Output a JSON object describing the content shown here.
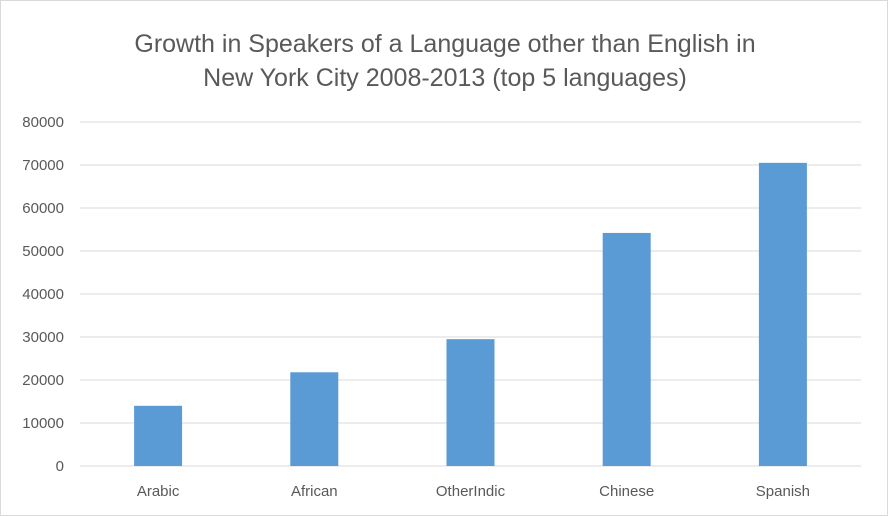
{
  "chart_data": {
    "type": "bar",
    "title_lines": [
      "Growth in Speakers of a Language other than English in",
      "New York City 2008-2013 (top 5 languages)"
    ],
    "xlabel": "",
    "ylabel": "",
    "categories": [
      "Arabic",
      "African",
      "OtherIndic",
      "Chinese",
      "Spanish"
    ],
    "values": [
      14000,
      21800,
      29500,
      54200,
      70500
    ],
    "ylim": [
      0,
      80000
    ],
    "yticks": [
      "0",
      "10000",
      "20000",
      "30000",
      "40000",
      "50000",
      "60000",
      "70000",
      "80000"
    ],
    "grid": true,
    "legend": "none",
    "colors": {
      "bar": "#5b9bd5",
      "grid": "#d9d9d9",
      "text": "#595959"
    }
  }
}
